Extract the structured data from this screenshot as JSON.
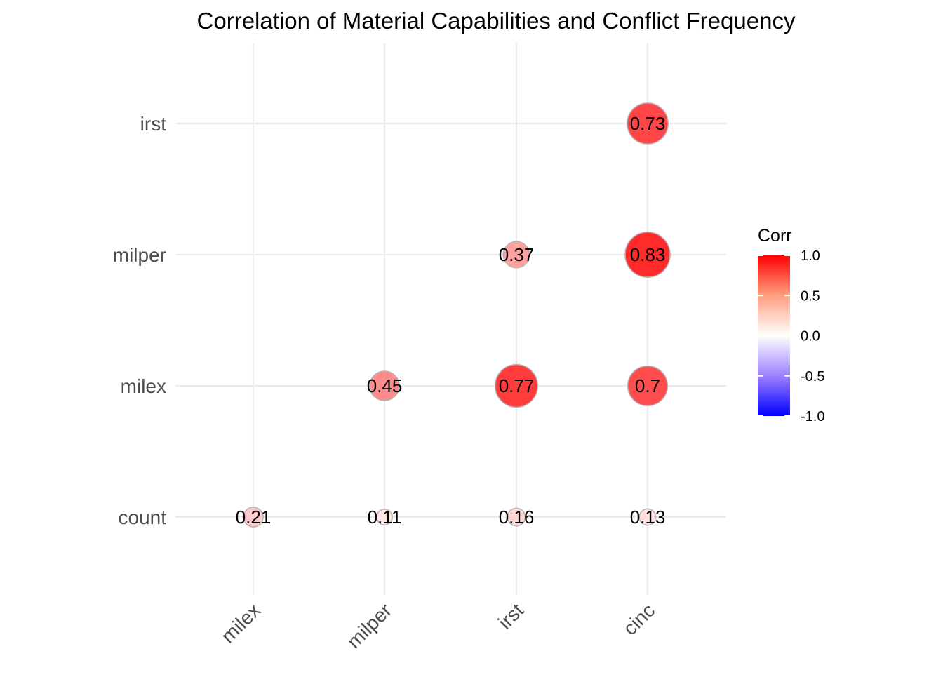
{
  "chart_data": {
    "type": "bubble-correlation",
    "title": "Correlation of Material Capabilities and Conflict Frequency",
    "x_categories": [
      "milex",
      "milper",
      "irst",
      "cinc"
    ],
    "y_categories": [
      "count",
      "milex",
      "milper",
      "irst"
    ],
    "cells": [
      {
        "x": "milex",
        "y": "count",
        "value": 0.21,
        "label": "0.21"
      },
      {
        "x": "milper",
        "y": "count",
        "value": 0.11,
        "label": "0.11"
      },
      {
        "x": "irst",
        "y": "count",
        "value": 0.16,
        "label": "0.16"
      },
      {
        "x": "cinc",
        "y": "count",
        "value": 0.13,
        "label": "0.13"
      },
      {
        "x": "milper",
        "y": "milex",
        "value": 0.45,
        "label": "0.45"
      },
      {
        "x": "irst",
        "y": "milex",
        "value": 0.77,
        "label": "0.77"
      },
      {
        "x": "cinc",
        "y": "milex",
        "value": 0.7,
        "label": "0.7"
      },
      {
        "x": "irst",
        "y": "milper",
        "value": 0.37,
        "label": "0.37"
      },
      {
        "x": "cinc",
        "y": "milper",
        "value": 0.83,
        "label": "0.83"
      },
      {
        "x": "cinc",
        "y": "irst",
        "value": 0.73,
        "label": "0.73"
      }
    ],
    "legend": {
      "title": "Corr",
      "placement": "right",
      "range": [
        -1,
        1
      ],
      "ticks": [
        {
          "value": 1.0,
          "label": "1.0"
        },
        {
          "value": 0.5,
          "label": "0.5"
        },
        {
          "value": 0.0,
          "label": "0.0"
        },
        {
          "value": -0.5,
          "label": "-0.5"
        },
        {
          "value": -1.0,
          "label": "-1.0"
        }
      ],
      "colors": {
        "low": "#0000ff",
        "mid": "#ffffff",
        "high": "#ff0000"
      }
    },
    "grid": true,
    "colors": {
      "grid": "#ebebeb",
      "bubble_outline": "#b3b3b3",
      "axis_text": "#4d4d4d",
      "label_text": "#000000",
      "title_text": "#000000"
    }
  }
}
